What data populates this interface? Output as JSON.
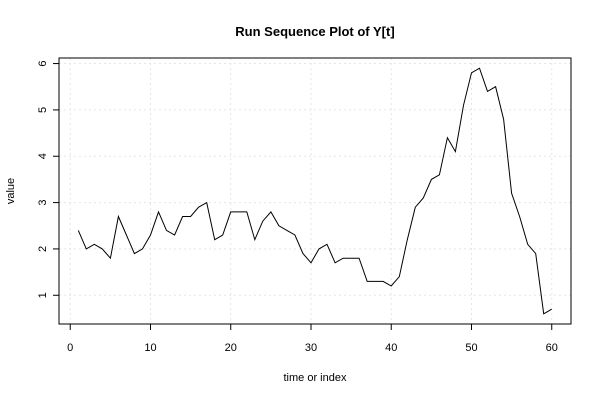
{
  "chart_data": {
    "type": "line",
    "title": "Run Sequence Plot of Y[t]",
    "xlabel": "time or index",
    "ylabel": "value",
    "xlim": [
      -1.4,
      62.4
    ],
    "ylim": [
      0.38,
      6.12
    ],
    "xticks": [
      0,
      10,
      20,
      30,
      40,
      50,
      60
    ],
    "yticks": [
      1,
      2,
      3,
      4,
      5,
      6
    ],
    "grid": true,
    "series": [
      {
        "color": "#000000",
        "x": [
          1,
          2,
          3,
          4,
          5,
          6,
          7,
          8,
          9,
          10,
          11,
          12,
          13,
          14,
          15,
          16,
          17,
          18,
          19,
          20,
          21,
          22,
          23,
          24,
          25,
          26,
          27,
          28,
          29,
          30,
          31,
          32,
          33,
          34,
          35,
          36,
          37,
          38,
          39,
          40,
          41,
          42,
          43,
          44,
          45,
          46,
          47,
          48,
          49,
          50,
          51,
          52,
          53,
          54,
          55,
          56,
          57,
          58,
          59,
          60
        ],
        "values": [
          2.4,
          2.0,
          2.1,
          2.0,
          1.8,
          2.7,
          2.3,
          1.9,
          2.0,
          2.3,
          2.8,
          2.4,
          2.3,
          2.7,
          2.7,
          2.9,
          3.0,
          2.2,
          2.3,
          2.8,
          2.8,
          2.8,
          2.2,
          2.6,
          2.8,
          2.5,
          2.4,
          2.3,
          1.9,
          1.7,
          2.0,
          2.1,
          1.7,
          1.8,
          1.8,
          1.8,
          1.3,
          1.3,
          1.3,
          1.2,
          1.4,
          2.2,
          2.9,
          3.1,
          3.5,
          3.6,
          4.4,
          4.1,
          5.1,
          5.8,
          5.9,
          5.4,
          5.5,
          4.8,
          3.2,
          2.7,
          2.1,
          1.9,
          0.6,
          0.7
        ]
      }
    ]
  }
}
